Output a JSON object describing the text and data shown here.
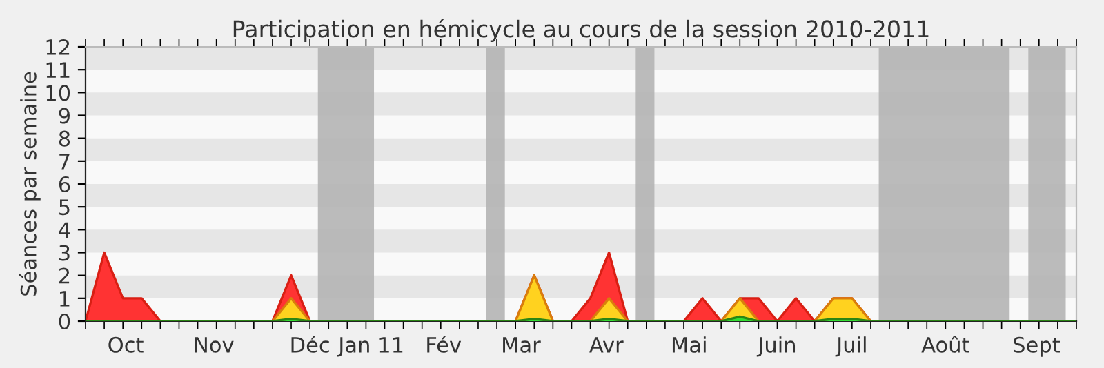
{
  "chart_data": {
    "type": "area",
    "title": "Participation en hémicycle au cours de la session 2010-2011",
    "ylabel": "Séances par semaine",
    "x": [
      "2010-09-27",
      "2010-10-04",
      "2010-10-11",
      "2010-10-18",
      "2010-10-25",
      "2010-11-01",
      "2010-11-08",
      "2010-11-15",
      "2010-11-22",
      "2010-11-29",
      "2010-12-06",
      "2010-12-13",
      "2010-12-20",
      "2010-12-27",
      "2011-01-03",
      "2011-01-10",
      "2011-01-17",
      "2011-01-24",
      "2011-01-31",
      "2011-02-07",
      "2011-02-14",
      "2011-02-21",
      "2011-02-28",
      "2011-03-07",
      "2011-03-14",
      "2011-03-21",
      "2011-03-28",
      "2011-04-04",
      "2011-04-11",
      "2011-04-18",
      "2011-04-25",
      "2011-05-02",
      "2011-05-09",
      "2011-05-16",
      "2011-05-23",
      "2011-05-30",
      "2011-06-06",
      "2011-06-13",
      "2011-06-20",
      "2011-06-27",
      "2011-07-04",
      "2011-07-11",
      "2011-07-18",
      "2011-07-25",
      "2011-08-01",
      "2011-08-08",
      "2011-08-15",
      "2011-08-22",
      "2011-08-29",
      "2011-09-05",
      "2011-09-12",
      "2011-09-19",
      "2011-09-26",
      "2011-10-03"
    ],
    "series": [
      {
        "color": "#ff3333",
        "values": [
          0,
          3,
          1,
          1,
          0,
          0,
          0,
          0,
          0,
          0,
          0,
          2,
          0,
          0,
          0,
          0,
          0,
          0,
          0,
          0,
          0,
          0,
          0,
          0,
          2,
          0,
          0,
          1,
          3,
          0,
          0,
          0,
          0,
          1,
          0,
          1,
          1,
          0,
          1,
          0,
          1,
          1,
          0,
          0,
          0,
          0,
          0,
          0,
          0,
          0,
          0,
          0,
          0,
          0
        ]
      },
      {
        "color": "#ffd21f",
        "values": [
          0,
          0,
          0,
          0,
          0,
          0,
          0,
          0,
          0,
          0,
          0,
          1,
          0,
          0,
          0,
          0,
          0,
          0,
          0,
          0,
          0,
          0,
          0,
          0,
          2,
          0,
          0,
          0,
          1,
          0,
          0,
          0,
          0,
          0,
          0,
          1,
          0,
          0,
          0,
          0,
          1,
          1,
          0,
          0,
          0,
          0,
          0,
          0,
          0,
          0,
          0,
          0,
          0,
          0
        ]
      },
      {
        "color": "#33dd33",
        "values": [
          0,
          0,
          0,
          0,
          0,
          0,
          0,
          0,
          0,
          0,
          0,
          0.1,
          0,
          0,
          0,
          0,
          0,
          0,
          0,
          0,
          0,
          0,
          0,
          0,
          0.1,
          0,
          0,
          0,
          0.1,
          0,
          0,
          0,
          0,
          0,
          0,
          0.2,
          0,
          0,
          0,
          0,
          0.1,
          0.1,
          0,
          0,
          0,
          0,
          0,
          0,
          0,
          0,
          0,
          0,
          0,
          0
        ]
      }
    ],
    "xlim": [
      "2010-09-27",
      "2011-10-03"
    ],
    "ylim": [
      0,
      12
    ],
    "yticks": [
      0,
      1,
      2,
      3,
      4,
      5,
      6,
      7,
      8,
      9,
      10,
      11,
      12
    ],
    "xticks": [
      {
        "value": "2010-10-12",
        "label": "Oct"
      },
      {
        "value": "2010-11-14",
        "label": "Nov"
      },
      {
        "value": "2010-12-20",
        "label": "Déc"
      },
      {
        "value": "2011-01-12",
        "label": "Jan 11"
      },
      {
        "value": "2011-02-08",
        "label": "Fév"
      },
      {
        "value": "2011-03-09",
        "label": "Mar"
      },
      {
        "value": "2011-04-10",
        "label": "Avr"
      },
      {
        "value": "2011-05-11",
        "label": "Mai"
      },
      {
        "value": "2011-06-13",
        "label": "Juin"
      },
      {
        "value": "2011-07-11",
        "label": "Juil"
      },
      {
        "value": "2011-08-15",
        "label": "Août"
      },
      {
        "value": "2011-09-18",
        "label": "Sept"
      }
    ],
    "bands": [
      {
        "axis": "x",
        "from": "2010-12-23",
        "to": "2011-01-13",
        "color": "#b4b4b4"
      },
      {
        "axis": "x",
        "from": "2011-02-24",
        "to": "2011-03-03",
        "color": "#b4b4b4"
      },
      {
        "axis": "x",
        "from": "2011-04-21",
        "to": "2011-04-28",
        "color": "#b4b4b4"
      },
      {
        "axis": "x",
        "from": "2011-07-21",
        "to": "2011-09-08",
        "color": "#b4b4b4"
      },
      {
        "axis": "x",
        "from": "2011-09-15",
        "to": "2011-09-29",
        "color": "#b4b4b4"
      }
    ],
    "legend": false
  }
}
